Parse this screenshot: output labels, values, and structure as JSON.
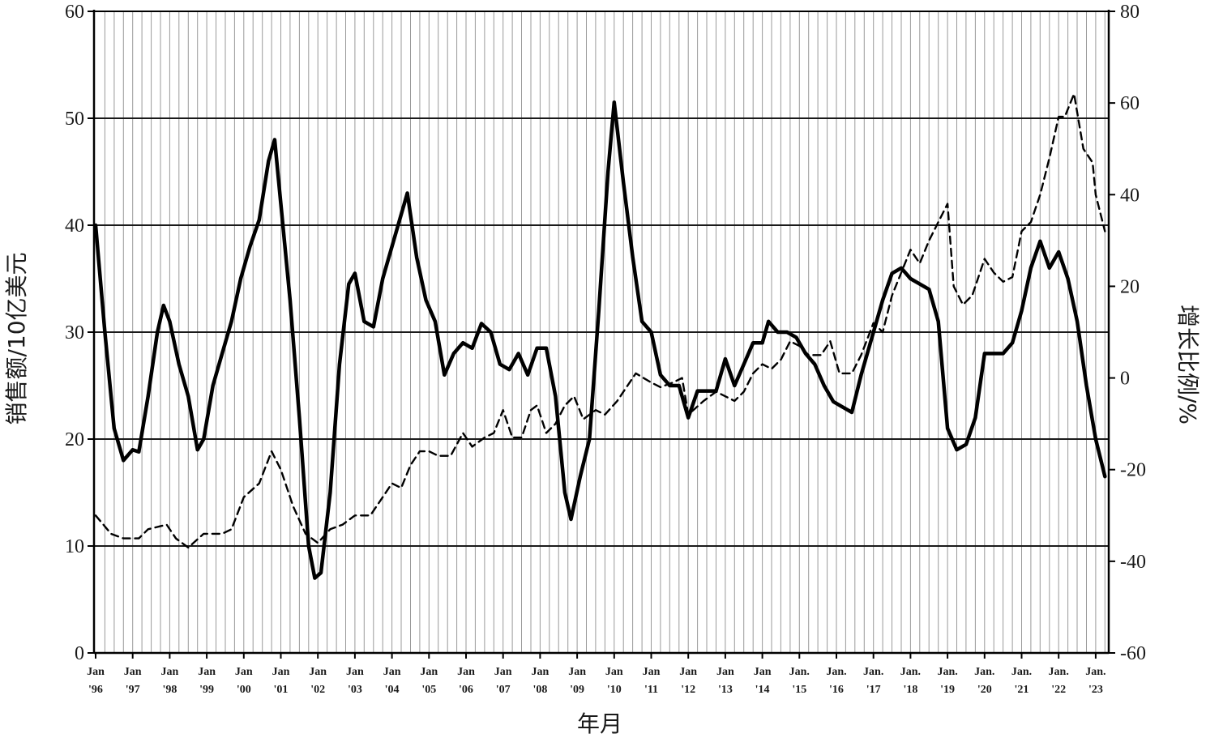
{
  "chart_data": {
    "type": "line",
    "xlabel": "年月",
    "ylabel_left": "销售额/10亿美元",
    "ylabel_right": "增长比例/%",
    "ylim_left": [
      0,
      60
    ],
    "ylim_right": [
      -60,
      80
    ],
    "yticks_left": [
      "0",
      "10",
      "20",
      "30",
      "40",
      "50",
      "60"
    ],
    "yticks_right": [
      "-60",
      "-40",
      "-20",
      "0",
      "20",
      "40",
      "60",
      "80"
    ],
    "x_tick_labels": [
      [
        "Jan",
        "'96"
      ],
      [
        "Jan",
        "'97"
      ],
      [
        "Jan",
        "'98"
      ],
      [
        "Jan",
        "'99"
      ],
      [
        "Jan",
        "'00"
      ],
      [
        "Jan",
        "'01"
      ],
      [
        "Jan",
        "'02"
      ],
      [
        "Jan",
        "'03"
      ],
      [
        "Jan",
        "'04"
      ],
      [
        "Jan",
        "'05"
      ],
      [
        "Jan",
        "'06"
      ],
      [
        "Jan",
        "'07"
      ],
      [
        "Jan",
        "'08"
      ],
      [
        "Jan",
        "'09"
      ],
      [
        "Jan",
        "'10"
      ],
      [
        "Jan",
        "'11"
      ],
      [
        "Jan",
        "'12"
      ],
      [
        "Jan",
        "'13"
      ],
      [
        "Jan",
        "'14"
      ],
      [
        "Jan.",
        "'15"
      ],
      [
        "Jan.",
        "'16"
      ],
      [
        "Jan.",
        "'17"
      ],
      [
        "Jan.",
        "'18"
      ],
      [
        "Jan.",
        "'19"
      ],
      [
        "Jan.",
        "'20"
      ],
      [
        "Jan.",
        "'21"
      ],
      [
        "Jan.",
        "'22"
      ],
      [
        "Jan.",
        "'23"
      ]
    ],
    "x_start": "1996-01",
    "grid": "horizontal lines at major left-axis ticks, vertical lines every quarter",
    "series": [
      {
        "axis": "left",
        "style": "solid-thick",
        "points": [
          [
            "1996-01",
            40
          ],
          [
            "1996-04",
            30
          ],
          [
            "1996-07",
            21
          ],
          [
            "1996-10",
            18
          ],
          [
            "1997-01",
            19
          ],
          [
            "1997-03",
            18.8
          ],
          [
            "1997-06",
            24
          ],
          [
            "1997-09",
            30
          ],
          [
            "1997-11",
            32.5
          ],
          [
            "1998-01",
            31
          ],
          [
            "1998-04",
            27
          ],
          [
            "1998-07",
            24
          ],
          [
            "1998-10",
            19
          ],
          [
            "1998-12",
            20
          ],
          [
            "1999-03",
            25
          ],
          [
            "1999-06",
            28
          ],
          [
            "1999-09",
            31
          ],
          [
            "1999-12",
            35
          ],
          [
            "2000-03",
            38
          ],
          [
            "2000-06",
            40.5
          ],
          [
            "2000-09",
            46
          ],
          [
            "2000-11",
            48
          ],
          [
            "2001-01",
            42
          ],
          [
            "2001-04",
            33
          ],
          [
            "2001-07",
            22
          ],
          [
            "2001-10",
            10
          ],
          [
            "2001-12",
            7
          ],
          [
            "2002-02",
            7.5
          ],
          [
            "2002-05",
            15
          ],
          [
            "2002-08",
            27
          ],
          [
            "2002-11",
            34.5
          ],
          [
            "2003-01",
            35.5
          ],
          [
            "2003-04",
            31
          ],
          [
            "2003-07",
            30.5
          ],
          [
            "2003-10",
            35
          ],
          [
            "2004-01",
            38
          ],
          [
            "2004-04",
            41
          ],
          [
            "2004-06",
            43
          ],
          [
            "2004-09",
            37
          ],
          [
            "2004-12",
            33
          ],
          [
            "2005-03",
            31
          ],
          [
            "2005-06",
            26
          ],
          [
            "2005-09",
            28
          ],
          [
            "2005-12",
            29
          ],
          [
            "2006-03",
            28.5
          ],
          [
            "2006-06",
            30.8
          ],
          [
            "2006-09",
            30
          ],
          [
            "2006-12",
            27
          ],
          [
            "2007-03",
            26.5
          ],
          [
            "2007-06",
            28
          ],
          [
            "2007-09",
            26
          ],
          [
            "2007-12",
            28.5
          ],
          [
            "2008-03",
            28.5
          ],
          [
            "2008-06",
            24
          ],
          [
            "2008-09",
            15
          ],
          [
            "2008-11",
            12.5
          ],
          [
            "2009-02",
            16.5
          ],
          [
            "2009-05",
            20
          ],
          [
            "2009-08",
            32
          ],
          [
            "2009-11",
            45
          ],
          [
            "2010-01",
            51.5
          ],
          [
            "2010-04",
            44
          ],
          [
            "2010-07",
            37
          ],
          [
            "2010-10",
            31
          ],
          [
            "2011-01",
            30
          ],
          [
            "2011-04",
            26
          ],
          [
            "2011-07",
            25
          ],
          [
            "2011-10",
            25
          ],
          [
            "2012-01",
            22
          ],
          [
            "2012-04",
            24.5
          ],
          [
            "2012-07",
            24.5
          ],
          [
            "2012-10",
            24.5
          ],
          [
            "2013-01",
            27.5
          ],
          [
            "2013-04",
            25
          ],
          [
            "2013-07",
            27
          ],
          [
            "2013-10",
            29
          ],
          [
            "2014-01",
            29
          ],
          [
            "2014-03",
            31
          ],
          [
            "2014-06",
            30
          ],
          [
            "2014-09",
            30
          ],
          [
            "2014-12",
            29.5
          ],
          [
            "2015-03",
            28
          ],
          [
            "2015-06",
            27
          ],
          [
            "2015-09",
            25
          ],
          [
            "2015-12",
            23.5
          ],
          [
            "2016-03",
            23
          ],
          [
            "2016-06",
            22.5
          ],
          [
            "2016-09",
            26
          ],
          [
            "2017-01",
            30
          ],
          [
            "2017-04",
            33
          ],
          [
            "2017-07",
            35.5
          ],
          [
            "2017-10",
            36
          ],
          [
            "2018-01",
            35
          ],
          [
            "2018-04",
            34.5
          ],
          [
            "2018-07",
            34
          ],
          [
            "2018-10",
            31
          ],
          [
            "2019-01",
            21
          ],
          [
            "2019-04",
            19
          ],
          [
            "2019-07",
            19.5
          ],
          [
            "2019-10",
            22
          ],
          [
            "2020-01",
            28
          ],
          [
            "2020-04",
            28
          ],
          [
            "2020-07",
            28
          ],
          [
            "2020-10",
            29
          ],
          [
            "2021-01",
            32
          ],
          [
            "2021-04",
            36
          ],
          [
            "2021-07",
            38.5
          ],
          [
            "2021-10",
            36
          ],
          [
            "2022-01",
            37.5
          ],
          [
            "2022-04",
            35
          ],
          [
            "2022-07",
            31
          ],
          [
            "2022-10",
            25
          ],
          [
            "2023-01",
            20
          ],
          [
            "2023-04",
            16.5
          ]
        ]
      },
      {
        "axis": "right",
        "style": "dashed",
        "points": [
          [
            "1996-01",
            -30
          ],
          [
            "1996-06",
            -34
          ],
          [
            "1996-10",
            -35
          ],
          [
            "1997-03",
            -35
          ],
          [
            "1997-06",
            -33
          ],
          [
            "1997-12",
            -32
          ],
          [
            "1998-03",
            -35
          ],
          [
            "1998-07",
            -37
          ],
          [
            "1998-12",
            -34
          ],
          [
            "1999-03",
            -34
          ],
          [
            "1999-06",
            -34
          ],
          [
            "1999-09",
            -33
          ],
          [
            "2000-01",
            -26
          ],
          [
            "2000-06",
            -23
          ],
          [
            "2000-10",
            -16
          ],
          [
            "2001-01",
            -20
          ],
          [
            "2001-05",
            -28
          ],
          [
            "2001-09",
            -34
          ],
          [
            "2002-01",
            -36
          ],
          [
            "2002-05",
            -33
          ],
          [
            "2002-09",
            -32
          ],
          [
            "2003-01",
            -30
          ],
          [
            "2003-06",
            -30
          ],
          [
            "2003-10",
            -26
          ],
          [
            "2004-01",
            -23
          ],
          [
            "2004-04",
            -24
          ],
          [
            "2004-07",
            -19
          ],
          [
            "2004-10",
            -16
          ],
          [
            "2005-01",
            -16
          ],
          [
            "2005-04",
            -17
          ],
          [
            "2005-08",
            -17
          ],
          [
            "2005-12",
            -12
          ],
          [
            "2006-03",
            -15
          ],
          [
            "2006-07",
            -13
          ],
          [
            "2006-10",
            -12
          ],
          [
            "2007-01",
            -7
          ],
          [
            "2007-04",
            -13
          ],
          [
            "2007-07",
            -13
          ],
          [
            "2007-10",
            -7
          ],
          [
            "2007-12",
            -6
          ],
          [
            "2008-03",
            -12
          ],
          [
            "2008-06",
            -10
          ],
          [
            "2008-09",
            -6
          ],
          [
            "2008-12",
            -4
          ],
          [
            "2009-03",
            -9
          ],
          [
            "2009-07",
            -7
          ],
          [
            "2009-10",
            -8
          ],
          [
            "2010-02",
            -5
          ],
          [
            "2010-05",
            -2
          ],
          [
            "2010-08",
            1
          ],
          [
            "2011-01",
            -1
          ],
          [
            "2011-04",
            -2
          ],
          [
            "2011-08",
            -1
          ],
          [
            "2011-11",
            0
          ],
          [
            "2012-01",
            -8
          ],
          [
            "2012-06",
            -5
          ],
          [
            "2012-10",
            -3
          ],
          [
            "2013-01",
            -4
          ],
          [
            "2013-04",
            -5
          ],
          [
            "2013-07",
            -3
          ],
          [
            "2013-10",
            1
          ],
          [
            "2014-01",
            3
          ],
          [
            "2014-04",
            2
          ],
          [
            "2014-07",
            4
          ],
          [
            "2014-10",
            8
          ],
          [
            "2015-01",
            7
          ],
          [
            "2015-04",
            5
          ],
          [
            "2015-08",
            5
          ],
          [
            "2015-11",
            8
          ],
          [
            "2016-02",
            1
          ],
          [
            "2016-06",
            1
          ],
          [
            "2016-09",
            5
          ],
          [
            "2017-01",
            12
          ],
          [
            "2017-04",
            10
          ],
          [
            "2017-07",
            18
          ],
          [
            "2017-10",
            23
          ],
          [
            "2018-01",
            28
          ],
          [
            "2018-04",
            25
          ],
          [
            "2018-07",
            30
          ],
          [
            "2018-10",
            34
          ],
          [
            "2019-01",
            38
          ],
          [
            "2019-03",
            20
          ],
          [
            "2019-06",
            16
          ],
          [
            "2019-09",
            18
          ],
          [
            "2020-01",
            26
          ],
          [
            "2020-04",
            23
          ],
          [
            "2020-07",
            21
          ],
          [
            "2020-10",
            22
          ],
          [
            "2021-01",
            32
          ],
          [
            "2021-04",
            34
          ],
          [
            "2021-07",
            40
          ],
          [
            "2021-10",
            48
          ],
          [
            "2022-01",
            57
          ],
          [
            "2022-03",
            57
          ],
          [
            "2022-06",
            62
          ],
          [
            "2022-09",
            50
          ],
          [
            "2022-12",
            47
          ],
          [
            "2023-01",
            40
          ],
          [
            "2023-04",
            32
          ]
        ]
      }
    ]
  }
}
